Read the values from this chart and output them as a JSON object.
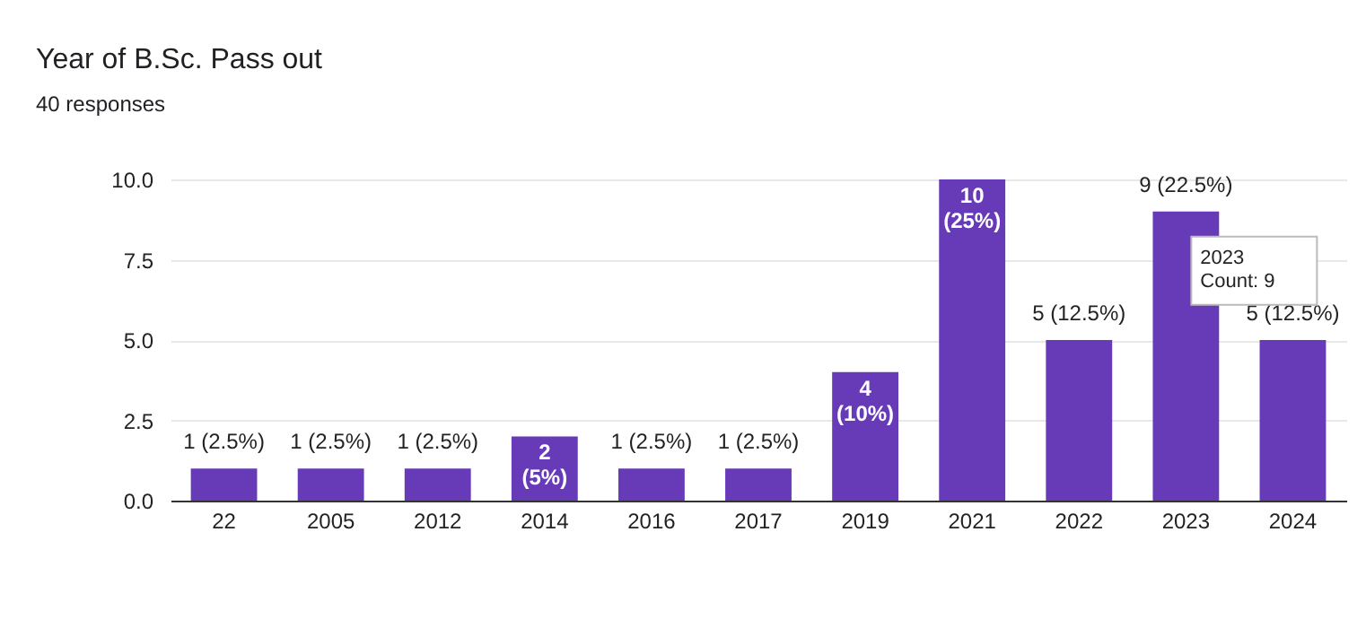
{
  "chart_data": {
    "type": "bar",
    "title": "Year of B.Sc.  Pass out",
    "subtitle": "40 responses",
    "categories": [
      "22",
      "2005",
      "2012",
      "2014",
      "2016",
      "2017",
      "2019",
      "2021",
      "2022",
      "2023",
      "2024"
    ],
    "values": [
      1,
      1,
      1,
      2,
      1,
      1,
      4,
      10,
      5,
      9,
      5
    ],
    "value_labels": [
      "1 (2.5%)",
      "1 (2.5%)",
      "1 (2.5%)",
      "2\n(5%)",
      "1 (2.5%)",
      "1 (2.5%)",
      "4\n(10%)",
      "10\n(25%)",
      "5 (12.5%)",
      "9 (22.5%)",
      "5 (12.5%)"
    ],
    "color": "#673ab7",
    "ylim": [
      0,
      10
    ],
    "yticks": [
      {
        "value": 0,
        "label": "0.0"
      },
      {
        "value": 2.5,
        "label": "2.5"
      },
      {
        "value": 5,
        "label": "5.0"
      },
      {
        "value": 7.5,
        "label": "7.5"
      },
      {
        "value": 10,
        "label": "10.0"
      }
    ],
    "grid": "y",
    "annotations": [
      {
        "text": "2023\nCount: 9",
        "x": "2023",
        "y": 9
      }
    ]
  }
}
